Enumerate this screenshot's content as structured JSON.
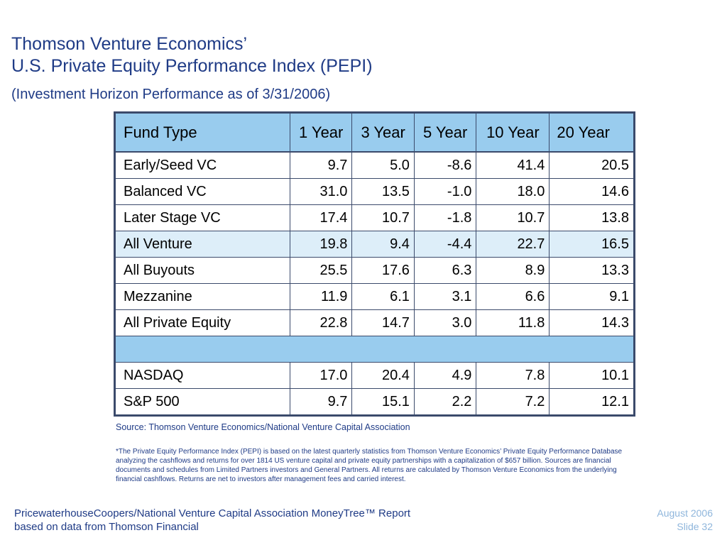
{
  "header": {
    "title_line1": "Thomson Venture Economics’",
    "title_line2": "U.S. Private Equity Performance Index (PEPI)",
    "subtitle": "(Investment Horizon Performance as of 3/31/2006)"
  },
  "table": {
    "columns": [
      "Fund Type",
      "1 Year",
      "3 Year",
      "5 Year",
      "10 Year",
      "20 Year"
    ],
    "rows": [
      {
        "name": "Early/Seed VC",
        "values": [
          "9.7",
          "5.0",
          "-8.6",
          "41.4",
          "20.5"
        ]
      },
      {
        "name": "Balanced VC",
        "values": [
          "31.0",
          "13.5",
          "-1.0",
          "18.0",
          "14.6"
        ]
      },
      {
        "name": "Later Stage VC",
        "values": [
          "17.4",
          "10.7",
          "-1.8",
          "10.7",
          "13.8"
        ]
      },
      {
        "name": "All Venture",
        "values": [
          "19.8",
          "9.4",
          "-4.4",
          "22.7",
          "16.5"
        ]
      },
      {
        "name": "All Buyouts",
        "values": [
          "25.5",
          "17.6",
          "6.3",
          "8.9",
          "13.3"
        ]
      },
      {
        "name": "Mezzanine",
        "values": [
          "11.9",
          "6.1",
          "3.1",
          "6.6",
          "9.1"
        ]
      },
      {
        "name": "All Private Equity",
        "values": [
          "22.8",
          "14.7",
          "3.0",
          "11.8",
          "14.3"
        ]
      },
      {
        "name": "NASDAQ",
        "values": [
          "17.0",
          "20.4",
          "4.9",
          "7.8",
          "10.1"
        ]
      },
      {
        "name": "S&P 500",
        "values": [
          "9.7",
          "15.1",
          "2.2",
          "7.2",
          "12.1"
        ]
      }
    ]
  },
  "source": "Source: Thomson Venture Economics/National Venture Capital Association",
  "footnote": "*The Private Equity Performance Index (PEPI) is based on the latest quarterly statistics from Thomson Venture Economics’ Private Equity Performance Database analyzing the cashflows and returns for over 1814 US venture capital and private equity partnerships with a capitalization of $657 billion. Sources are financial documents and schedules from Limited Partners investors and General Partners. All returns are calculated by Thomson Venture Economics from the underlying financial cashflows. Returns are net to investors after management fees and carried interest.",
  "footer": {
    "left_line1": "PricewaterhouseCoopers/National Venture Capital Association MoneyTree™ Report",
    "left_line2": "based on data from Thomson Financial",
    "date": "August 2006",
    "slide": "Slide 32"
  },
  "colors": {
    "title": "#1f3b86",
    "header_bg": "#99ccee",
    "highlight_bg": "#ddeef9",
    "footer_right": "#8fb6dc"
  }
}
